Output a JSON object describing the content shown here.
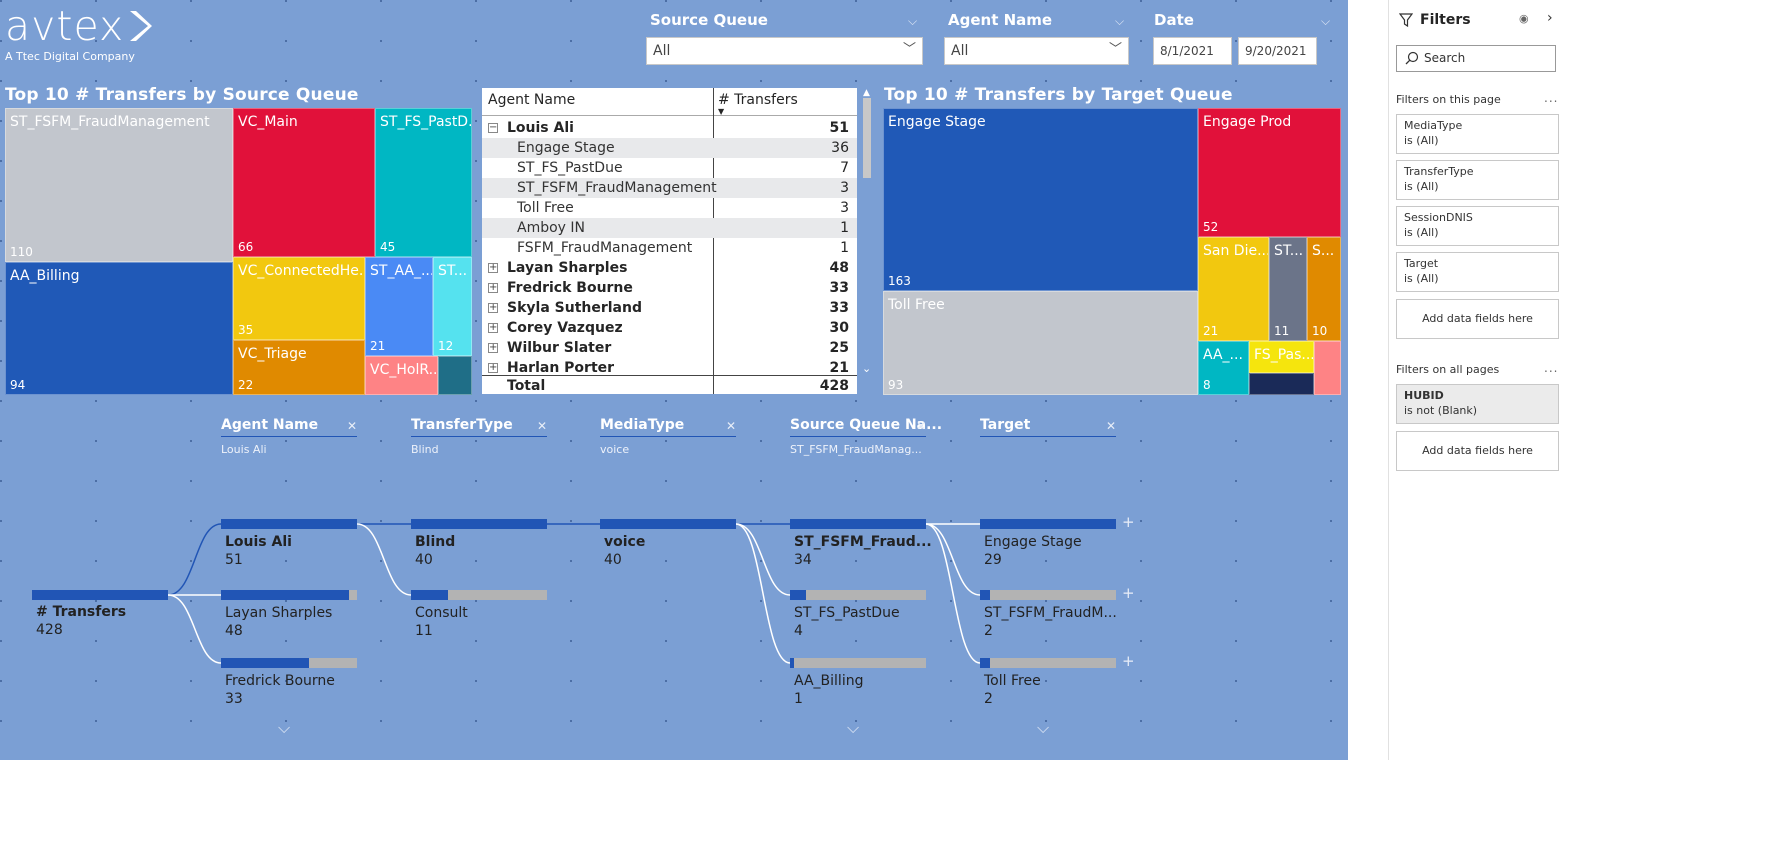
{
  "brand": {
    "logo_text": "avtex",
    "tagline": "A Ttec Digital Company"
  },
  "slicers": {
    "source_queue": {
      "title": "Source Queue",
      "value": "All"
    },
    "agent_name": {
      "title": "Agent Name",
      "value": "All"
    },
    "date": {
      "title": "Date",
      "start": "8/1/2021",
      "end": "9/20/2021"
    }
  },
  "treemap_source": {
    "title": "Top 10 # Transfers by Source Queue",
    "tiles": [
      {
        "label": "ST_FSFM_FraudManagement",
        "value": "110",
        "color": "#c2c6cd"
      },
      {
        "label": "VC_Main",
        "value": "66",
        "color": "#e1113a"
      },
      {
        "label": "ST_FS_PastD...",
        "value": "45",
        "color": "#00b7c3"
      },
      {
        "label": "AA_Billing",
        "value": "94",
        "color": "#2059b7"
      },
      {
        "label": "VC_ConnectedHe...",
        "value": "35",
        "color": "#f2c80f"
      },
      {
        "label": "ST_AA_...",
        "value": "21",
        "color": "#4a8af5"
      },
      {
        "label": "ST...",
        "value": "12",
        "color": "#55e2ef"
      },
      {
        "label": "VC_Triage",
        "value": "22",
        "color": "#e08a00"
      },
      {
        "label": "VC_HolR...",
        "value": "",
        "color": "#fe8385"
      },
      {
        "label": "",
        "value": "",
        "color": "#1f6e87"
      }
    ]
  },
  "matrix": {
    "col_agent": "Agent Name",
    "col_transfers": "# Transfers",
    "rows": [
      {
        "name": "Louis Ali",
        "value": "51",
        "icon": "⊟",
        "level": "parent"
      },
      {
        "name": "Engage Stage",
        "value": "36",
        "level": "child"
      },
      {
        "name": "ST_FS_PastDue",
        "value": "7",
        "level": "child"
      },
      {
        "name": "ST_FSFM_FraudManagement",
        "value": "3",
        "level": "child"
      },
      {
        "name": "Toll Free",
        "value": "3",
        "level": "child"
      },
      {
        "name": "Amboy IN",
        "value": "1",
        "level": "child"
      },
      {
        "name": "FSFM_FraudManagement",
        "value": "1",
        "level": "child"
      },
      {
        "name": "Layan Sharples",
        "value": "48",
        "icon": "⊞",
        "level": "parent"
      },
      {
        "name": "Fredrick Bourne",
        "value": "33",
        "icon": "⊞",
        "level": "parent"
      },
      {
        "name": "Skyla Sutherland",
        "value": "33",
        "icon": "⊞",
        "level": "parent"
      },
      {
        "name": "Corey Vazquez",
        "value": "30",
        "icon": "⊞",
        "level": "parent"
      },
      {
        "name": "Wilbur Slater",
        "value": "25",
        "icon": "⊞",
        "level": "parent"
      },
      {
        "name": "Harlan Porter",
        "value": "21",
        "icon": "⊞",
        "level": "parent"
      }
    ],
    "total_label": "Total",
    "total_value": "428"
  },
  "treemap_target": {
    "title": "Top 10 # Transfers by Target Queue",
    "tiles": [
      {
        "label": "Engage Stage",
        "value": "163",
        "color": "#2059b7"
      },
      {
        "label": "Engage Prod",
        "value": "52",
        "color": "#e1113a"
      },
      {
        "label": "Toll Free",
        "value": "93",
        "color": "#c2c6cd"
      },
      {
        "label": "San Die...",
        "value": "21",
        "color": "#f2c80f"
      },
      {
        "label": "ST...",
        "value": "11",
        "color": "#6b7489"
      },
      {
        "label": "S...",
        "value": "10",
        "color": "#e08a00"
      },
      {
        "label": "AA_...",
        "value": "8",
        "color": "#00b7c3"
      },
      {
        "label": "FS_Pas...",
        "value": "",
        "color": "#f5e50d"
      },
      {
        "label": "",
        "value": "",
        "color": "#fe8385"
      },
      {
        "label": "",
        "value": "",
        "color": "#1a2a58"
      }
    ]
  },
  "decomp": {
    "levels": [
      {
        "title": "Agent Name",
        "filter": "Louis Ali"
      },
      {
        "title": "TransferType",
        "filter": "Blind"
      },
      {
        "title": "MediaType",
        "filter": "voice"
      },
      {
        "title": "Source Queue Na...",
        "filter": "ST_FSFM_FraudManag..."
      },
      {
        "title": "Target",
        "filter": ""
      }
    ],
    "root": {
      "label": "# Transfers",
      "value": "428"
    },
    "nodes": [
      {
        "label": "Louis Ali",
        "value": "51",
        "bold": true,
        "fill": 1.0
      },
      {
        "label": "Layan Sharples",
        "value": "48",
        "bold": false,
        "fill": 0.94
      },
      {
        "label": "Fredrick Bourne",
        "value": "33",
        "bold": false,
        "fill": 0.65
      },
      {
        "label": "Blind",
        "value": "40",
        "bold": true,
        "fill": 1.0
      },
      {
        "label": "Consult",
        "value": "11",
        "bold": false,
        "fill": 0.275
      },
      {
        "label": "voice",
        "value": "40",
        "bold": true,
        "fill": 1.0
      },
      {
        "label": "ST_FSFM_Fraud...",
        "value": "34",
        "bold": true,
        "fill": 1.0
      },
      {
        "label": "ST_FS_PastDue",
        "value": "4",
        "bold": false,
        "fill": 0.12
      },
      {
        "label": "AA_Billing",
        "value": "1",
        "bold": false,
        "fill": 0.03
      },
      {
        "label": "Engage Stage",
        "value": "29",
        "bold": false,
        "fill": 1.0
      },
      {
        "label": "ST_FSFM_FraudM...",
        "value": "2",
        "bold": false,
        "fill": 0.07
      },
      {
        "label": "Toll Free",
        "value": "2",
        "bold": false,
        "fill": 0.07
      }
    ]
  },
  "filters_pane": {
    "title": "Filters",
    "search_placeholder": "Search",
    "on_page_label": "Filters on this page",
    "on_page": [
      {
        "field": "MediaType",
        "cond": "is (All)"
      },
      {
        "field": "TransferType",
        "cond": "is (All)"
      },
      {
        "field": "SessionDNIS",
        "cond": "is (All)"
      },
      {
        "field": "Target",
        "cond": "is (All)"
      }
    ],
    "add_fields": "Add data fields here",
    "all_pages_label": "Filters on all pages",
    "all_pages": [
      {
        "field": "HUBID",
        "cond": "is not (Blank)"
      }
    ]
  },
  "colors": {
    "canvas": "#7b9fd4",
    "accent": "#2155b5",
    "bar_bg": "#b3b3b3"
  }
}
